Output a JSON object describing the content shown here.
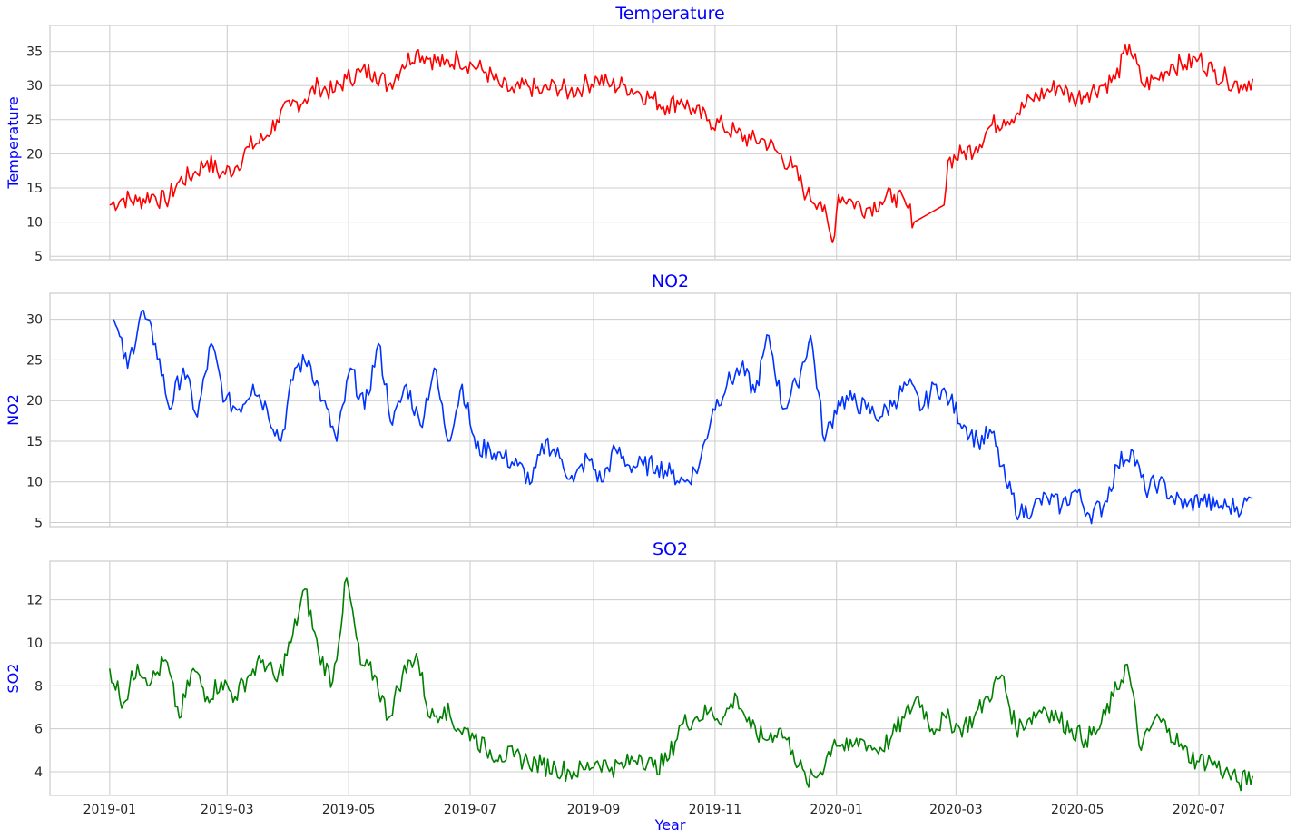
{
  "figure": {
    "xlabel": "Year"
  },
  "chart_data": [
    {
      "type": "line",
      "title": "Temperature",
      "ylabel": "Temperature",
      "xlabel": "",
      "color": "#ff0000",
      "grid": true,
      "ylim": [
        4.5,
        38.8
      ],
      "yticks": [
        5,
        10,
        15,
        20,
        25,
        30,
        35
      ],
      "xlim": [
        "2018-12-02",
        "2020-08-16"
      ],
      "xticks": [
        "2019-01",
        "2019-03",
        "2019-05",
        "2019-07",
        "2019-09",
        "2019-11",
        "2020-01",
        "2020-03",
        "2020-05",
        "2020-07"
      ],
      "series": [
        {
          "x": [
            "2019-01-01",
            "2019-01-08",
            "2019-01-15",
            "2019-01-22",
            "2019-01-29",
            "2019-02-05",
            "2019-02-12",
            "2019-02-19",
            "2019-02-26",
            "2019-03-05",
            "2019-03-12",
            "2019-03-19",
            "2019-03-26",
            "2019-04-02",
            "2019-04-09",
            "2019-04-16",
            "2019-04-23",
            "2019-04-30",
            "2019-05-07",
            "2019-05-14",
            "2019-05-21",
            "2019-05-28",
            "2019-06-04",
            "2019-06-11",
            "2019-06-18",
            "2019-06-25",
            "2019-07-02",
            "2019-07-09",
            "2019-07-16",
            "2019-07-23",
            "2019-07-30",
            "2019-08-06",
            "2019-08-13",
            "2019-08-20",
            "2019-08-27",
            "2019-09-03",
            "2019-09-10",
            "2019-09-17",
            "2019-09-24",
            "2019-10-01",
            "2019-10-08",
            "2019-10-15",
            "2019-10-22",
            "2019-10-29",
            "2019-11-05",
            "2019-11-12",
            "2019-11-19",
            "2019-11-26",
            "2019-12-03",
            "2019-12-10",
            "2019-12-17",
            "2019-12-24",
            "2019-12-30",
            "2020-01-02",
            "2020-01-09",
            "2020-01-16",
            "2020-01-23",
            "2020-01-30",
            "2020-02-06",
            "2020-02-09",
            "2020-02-24",
            "2020-02-26",
            "2020-03-04",
            "2020-03-11",
            "2020-03-18",
            "2020-03-25",
            "2020-04-01",
            "2020-04-08",
            "2020-04-15",
            "2020-04-22",
            "2020-04-29",
            "2020-05-06",
            "2020-05-13",
            "2020-05-20",
            "2020-05-27",
            "2020-06-03",
            "2020-06-10",
            "2020-06-17",
            "2020-06-24",
            "2020-07-01",
            "2020-07-08",
            "2020-07-15",
            "2020-07-22",
            "2020-07-28"
          ],
          "y": [
            12.5,
            13.5,
            13,
            14,
            13,
            16,
            17,
            19,
            17,
            18,
            21,
            22,
            25,
            27,
            28,
            30,
            29,
            31,
            32,
            32,
            30,
            33,
            35,
            34,
            33,
            34,
            33,
            32,
            30,
            29,
            30,
            29,
            30,
            29,
            30,
            31,
            30,
            30,
            29,
            28,
            27,
            28,
            26,
            25,
            24,
            23,
            22,
            22,
            20,
            18,
            14,
            13,
            7,
            14,
            13,
            12,
            13,
            14,
            12,
            10,
            12.5,
            19,
            20,
            21,
            24,
            25,
            26,
            28,
            29,
            30,
            28,
            29,
            30,
            31,
            36,
            30,
            31,
            33,
            33,
            34,
            32,
            31,
            30,
            31
          ],
          "interpolate_dense": true
        }
      ]
    },
    {
      "type": "line",
      "title": "NO2",
      "ylabel": "NO2",
      "xlabel": "",
      "color": "#0033ff",
      "grid": true,
      "ylim": [
        4.5,
        33.2
      ],
      "yticks": [
        5,
        10,
        15,
        20,
        25,
        30
      ],
      "xlim": [
        "2018-12-02",
        "2020-08-16"
      ],
      "xticks": [
        "2019-01",
        "2019-03",
        "2019-05",
        "2019-07",
        "2019-09",
        "2019-11",
        "2020-01",
        "2020-03",
        "2020-05",
        "2020-07"
      ],
      "series": [
        {
          "x": [
            "2019-01-03",
            "2019-01-10",
            "2019-01-17",
            "2019-01-24",
            "2019-01-31",
            "2019-02-07",
            "2019-02-14",
            "2019-02-21",
            "2019-02-28",
            "2019-03-07",
            "2019-03-14",
            "2019-03-21",
            "2019-03-28",
            "2019-04-04",
            "2019-04-11",
            "2019-04-18",
            "2019-04-25",
            "2019-05-02",
            "2019-05-09",
            "2019-05-16",
            "2019-05-23",
            "2019-05-30",
            "2019-06-06",
            "2019-06-13",
            "2019-06-20",
            "2019-06-27",
            "2019-07-04",
            "2019-07-11",
            "2019-07-18",
            "2019-07-25",
            "2019-08-01",
            "2019-08-08",
            "2019-08-15",
            "2019-08-22",
            "2019-08-29",
            "2019-09-05",
            "2019-09-12",
            "2019-09-19",
            "2019-09-26",
            "2019-10-03",
            "2019-10-10",
            "2019-10-17",
            "2019-10-24",
            "2019-10-31",
            "2019-11-07",
            "2019-11-14",
            "2019-11-21",
            "2019-11-28",
            "2019-12-05",
            "2019-12-12",
            "2019-12-19",
            "2019-12-26",
            "2020-01-02",
            "2020-01-09",
            "2020-01-16",
            "2020-01-23",
            "2020-01-30",
            "2020-02-06",
            "2020-02-13",
            "2020-02-20",
            "2020-02-27",
            "2020-03-05",
            "2020-03-12",
            "2020-03-19",
            "2020-03-26",
            "2020-04-02",
            "2020-04-09",
            "2020-04-16",
            "2020-04-23",
            "2020-04-30",
            "2020-05-07",
            "2020-05-14",
            "2020-05-21",
            "2020-05-28",
            "2020-06-04",
            "2020-06-11",
            "2020-06-18",
            "2020-06-25",
            "2020-07-02",
            "2020-07-09",
            "2020-07-16",
            "2020-07-23",
            "2020-07-28"
          ],
          "y": [
            30,
            24,
            31,
            27,
            19,
            24,
            18,
            27,
            20,
            19,
            22,
            19,
            15,
            24,
            25,
            20,
            15,
            24,
            19,
            27,
            17,
            22,
            17,
            24,
            15,
            22,
            14,
            14,
            13,
            12,
            10,
            15,
            13,
            10,
            13,
            10,
            14,
            12,
            12,
            12,
            11,
            10,
            12,
            19,
            22,
            24,
            21,
            28,
            19,
            22,
            28,
            15,
            20,
            20,
            19,
            18,
            20,
            22,
            19,
            22,
            20,
            17,
            15,
            16,
            10,
            6,
            7,
            8,
            7,
            9,
            6,
            7,
            12,
            14,
            9,
            10,
            8,
            7,
            8,
            7,
            7,
            7,
            8
          ],
          "interpolate_dense": true
        }
      ]
    },
    {
      "type": "line",
      "title": "SO2",
      "ylabel": "SO2",
      "xlabel": "Year",
      "color": "#008000",
      "grid": true,
      "ylim": [
        2.9,
        13.8
      ],
      "yticks": [
        4,
        6,
        8,
        10,
        12
      ],
      "xlim": [
        "2018-12-02",
        "2020-08-16"
      ],
      "xticks": [
        "2019-01",
        "2019-03",
        "2019-05",
        "2019-07",
        "2019-09",
        "2019-11",
        "2020-01",
        "2020-03",
        "2020-05",
        "2020-07"
      ],
      "series": [
        {
          "x": [
            "2019-01-01",
            "2019-01-08",
            "2019-01-15",
            "2019-01-22",
            "2019-01-29",
            "2019-02-05",
            "2019-02-12",
            "2019-02-19",
            "2019-02-26",
            "2019-03-05",
            "2019-03-12",
            "2019-03-19",
            "2019-03-26",
            "2019-04-02",
            "2019-04-09",
            "2019-04-16",
            "2019-04-23",
            "2019-04-30",
            "2019-05-07",
            "2019-05-14",
            "2019-05-21",
            "2019-05-28",
            "2019-06-04",
            "2019-06-11",
            "2019-06-18",
            "2019-06-25",
            "2019-07-02",
            "2019-07-09",
            "2019-07-16",
            "2019-07-23",
            "2019-07-30",
            "2019-08-06",
            "2019-08-13",
            "2019-08-20",
            "2019-08-27",
            "2019-09-03",
            "2019-09-10",
            "2019-09-17",
            "2019-09-24",
            "2019-10-01",
            "2019-10-08",
            "2019-10-15",
            "2019-10-22",
            "2019-10-29",
            "2019-11-05",
            "2019-11-12",
            "2019-11-19",
            "2019-11-26",
            "2019-12-03",
            "2019-12-10",
            "2019-12-17",
            "2019-12-24",
            "2019-12-31",
            "2020-01-07",
            "2020-01-14",
            "2020-01-21",
            "2020-01-28",
            "2020-02-04",
            "2020-02-11",
            "2020-02-18",
            "2020-02-25",
            "2020-03-03",
            "2020-03-10",
            "2020-03-17",
            "2020-03-24",
            "2020-03-31",
            "2020-04-07",
            "2020-04-14",
            "2020-04-21",
            "2020-04-28",
            "2020-05-05",
            "2020-05-12",
            "2020-05-19",
            "2020-05-26",
            "2020-06-02",
            "2020-06-09",
            "2020-06-16",
            "2020-06-23",
            "2020-06-30",
            "2020-07-07",
            "2020-07-14",
            "2020-07-21",
            "2020-07-28"
          ],
          "y": [
            8.8,
            7.2,
            9.0,
            8.2,
            9.2,
            6.5,
            8.8,
            7.5,
            8.2,
            7.5,
            8.5,
            9.2,
            8.2,
            10.0,
            12.5,
            9.5,
            8.2,
            13.0,
            9.0,
            8.5,
            6.5,
            8.5,
            9.5,
            6.5,
            7.0,
            6.0,
            5.8,
            5.0,
            4.8,
            4.7,
            4.5,
            4.3,
            4.2,
            4.0,
            4.1,
            4.5,
            4.2,
            4.3,
            4.8,
            4.2,
            4.5,
            6.2,
            6.5,
            6.8,
            6.5,
            7.5,
            6.0,
            5.5,
            6.0,
            5.0,
            3.5,
            4.0,
            5.5,
            5.0,
            5.5,
            5.0,
            5.5,
            6.5,
            7.5,
            6.0,
            6.5,
            6.0,
            6.5,
            7.5,
            8.5,
            6.0,
            6.5,
            7.0,
            6.5,
            6.0,
            5.5,
            6.0,
            7.5,
            9.0,
            5.0,
            6.5,
            6.0,
            5.0,
            4.5,
            4.5,
            4.0,
            3.5,
            3.8
          ],
          "interpolate_dense": true
        }
      ]
    }
  ]
}
